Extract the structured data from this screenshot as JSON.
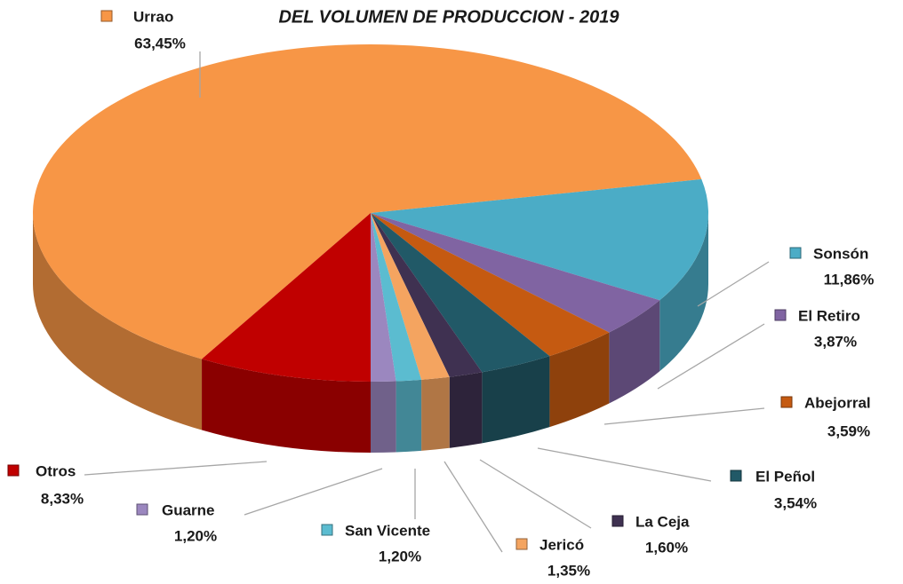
{
  "chart_data": {
    "type": "pie3d",
    "title": "DEL VOLUMEN DE PRODUCCION - 2019",
    "categories": [
      "Urrao",
      "Sonsón",
      "El Retiro",
      "Abejorral",
      "El Peñol",
      "La Ceja",
      "Jericó",
      "San Vicente",
      "Guarne",
      "Otros"
    ],
    "values": [
      63.45,
      11.86,
      3.87,
      3.59,
      3.54,
      1.6,
      1.35,
      1.2,
      1.2,
      8.33
    ],
    "value_labels": [
      "63,45%",
      "11,86%",
      "3,87%",
      "3,59%",
      "3,54%",
      "1,60%",
      "1,35%",
      "1,20%",
      "1,20%",
      "8,33%"
    ],
    "colors": [
      "#f79646",
      "#4bacc6",
      "#8064a2",
      "#c55a11",
      "#215967",
      "#3f3151",
      "#f4a460",
      "#5bbcd0",
      "#9b87bf",
      "#c00000"
    ]
  }
}
